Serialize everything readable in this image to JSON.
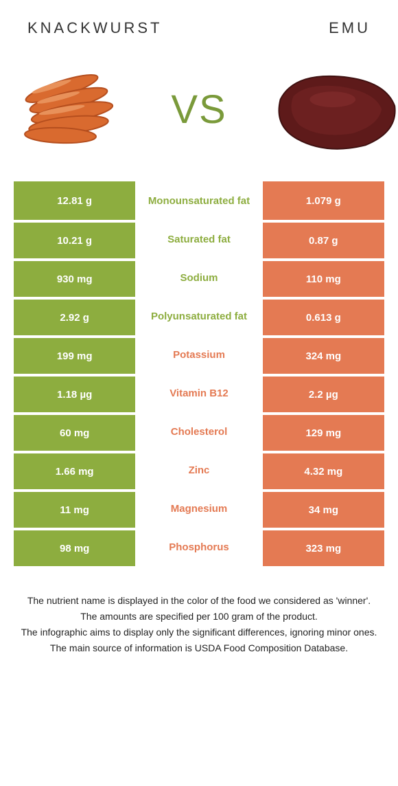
{
  "colors": {
    "green": "#8dad3f",
    "orange": "#e47a53",
    "vs": "#7a9a3a",
    "title": "#333333",
    "footnote": "#222222",
    "sausage_fill": "#d96a2f",
    "sausage_stroke": "#b54e1e",
    "meat_fill": "#6a1f1f",
    "meat_highlight": "#8a2f2f"
  },
  "left_food": "Knackwurst",
  "right_food": "Emu",
  "vs": "VS",
  "rows": [
    {
      "left": "12.81 g",
      "label": "Monounsaturated fat",
      "right": "1.079 g",
      "winner": "left"
    },
    {
      "left": "10.21 g",
      "label": "Saturated fat",
      "right": "0.87 g",
      "winner": "left"
    },
    {
      "left": "930 mg",
      "label": "Sodium",
      "right": "110 mg",
      "winner": "left"
    },
    {
      "left": "2.92 g",
      "label": "Polyunsaturated fat",
      "right": "0.613 g",
      "winner": "left"
    },
    {
      "left": "199 mg",
      "label": "Potassium",
      "right": "324 mg",
      "winner": "right"
    },
    {
      "left": "1.18 µg",
      "label": "Vitamin B12",
      "right": "2.2 µg",
      "winner": "right"
    },
    {
      "left": "60 mg",
      "label": "Cholesterol",
      "right": "129 mg",
      "winner": "right"
    },
    {
      "left": "1.66 mg",
      "label": "Zinc",
      "right": "4.32 mg",
      "winner": "right"
    },
    {
      "left": "11 mg",
      "label": "Magnesium",
      "right": "34 mg",
      "winner": "right"
    },
    {
      "left": "98 mg",
      "label": "Phosphorus",
      "right": "323 mg",
      "winner": "right"
    }
  ],
  "footnotes": [
    "The nutrient name is displayed in the color of the food we considered as 'winner'.",
    "The amounts are specified per 100 gram of the product.",
    "The infographic aims to display only the significant differences, ignoring minor ones.",
    "The main source of information is USDA Food Composition Database."
  ]
}
